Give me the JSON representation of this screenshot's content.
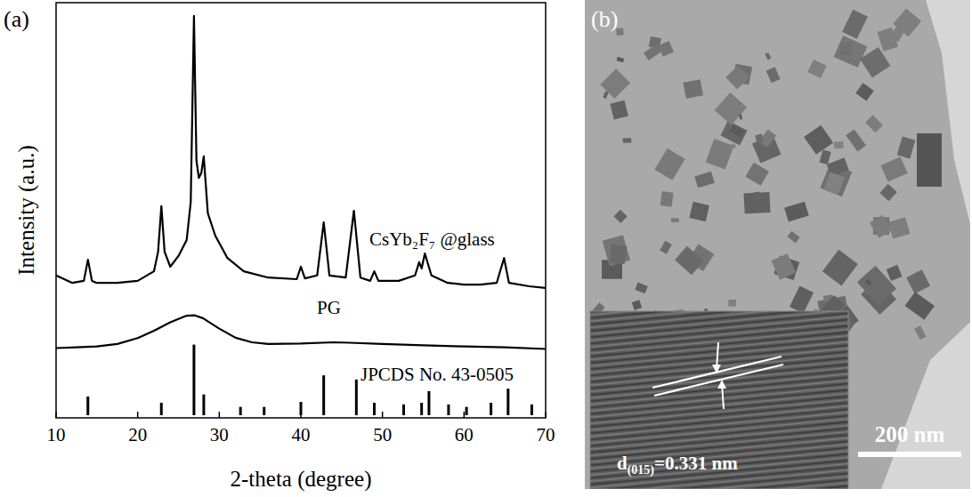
{
  "chart_data": {
    "type": "line",
    "panel_label": "(a)",
    "x_label": "2-theta (degree)",
    "y_label": "Intensity (a.u.)",
    "xlim": [
      10,
      70
    ],
    "xticks": [
      10,
      20,
      30,
      40,
      50,
      60,
      70
    ],
    "ylim": [
      0,
      100
    ],
    "yticks": [],
    "tick_labels": "x",
    "grid": false,
    "series": [
      {
        "name": "CsYb₂F₇ @glass",
        "type": "line",
        "color": "#000000",
        "x": [
          10,
          12,
          13.4,
          13.9,
          14.4,
          15,
          17.5,
          20,
          22,
          22.5,
          22.9,
          23.3,
          24,
          25,
          26,
          26.5,
          26.9,
          27.2,
          27.5,
          27.8,
          28.1,
          28.6,
          29.5,
          31,
          33,
          36,
          39.5,
          40,
          40.5,
          42,
          42.8,
          43.5,
          45.5,
          46.5,
          47.3,
          48.5,
          49,
          49.5,
          52,
          54,
          54.5,
          54.8,
          55.2,
          56,
          58,
          60,
          62,
          64,
          64.9,
          65.5,
          68,
          70
        ],
        "values": [
          34.3,
          32.5,
          33.0,
          38.1,
          33.0,
          32.5,
          32.5,
          33.0,
          35.3,
          40.0,
          51.0,
          40.0,
          36.4,
          39.0,
          42.8,
          52.0,
          96.8,
          62.0,
          57.8,
          59.0,
          63.0,
          49.3,
          43.9,
          38.5,
          35.3,
          33.8,
          33.4,
          36.4,
          33.6,
          34.3,
          47.1,
          34.3,
          33.8,
          49.9,
          33.8,
          33.0,
          35.3,
          33.0,
          33.0,
          34.3,
          37.5,
          36.0,
          39.6,
          34.3,
          32.5,
          32.1,
          32.1,
          32.5,
          38.5,
          32.5,
          31.7,
          31.3
        ]
      },
      {
        "name": "PG",
        "type": "line",
        "color": "#000000",
        "x": [
          10,
          12.5,
          15,
          17.5,
          20,
          22,
          24,
          26,
          27,
          28,
          30,
          32,
          34,
          36,
          40,
          44,
          46,
          50,
          55,
          60,
          65,
          70
        ],
        "values": [
          16.8,
          17.0,
          17.2,
          17.8,
          19.2,
          21.0,
          23.0,
          24.6,
          24.7,
          24.0,
          21.5,
          19.3,
          18.2,
          17.8,
          17.9,
          18.2,
          18.1,
          17.8,
          17.5,
          17.2,
          17.0,
          16.6
        ]
      },
      {
        "name": "JPCDS No. 43-0505",
        "type": "bar",
        "color": "#000000",
        "x": [
          13.9,
          22.9,
          26.9,
          28.1,
          32.6,
          35.5,
          40.0,
          42.8,
          46.8,
          49.0,
          52.6,
          54.8,
          55.7,
          58.1,
          60.3,
          63.3,
          65.4,
          68.3
        ],
        "values": [
          4.5,
          3.0,
          17.0,
          5.0,
          2.0,
          2.0,
          3.2,
          9.6,
          8.6,
          3.0,
          2.6,
          3.0,
          5.8,
          2.6,
          2.0,
          3.0,
          6.4,
          2.6
        ]
      }
    ]
  },
  "image_panel": {
    "panel_label": "(b)",
    "lattice_label": {
      "symbol": "d",
      "subscript": "(015)",
      "text": "=0.331 nm"
    },
    "scale_bar": {
      "label": "200 nm"
    }
  }
}
